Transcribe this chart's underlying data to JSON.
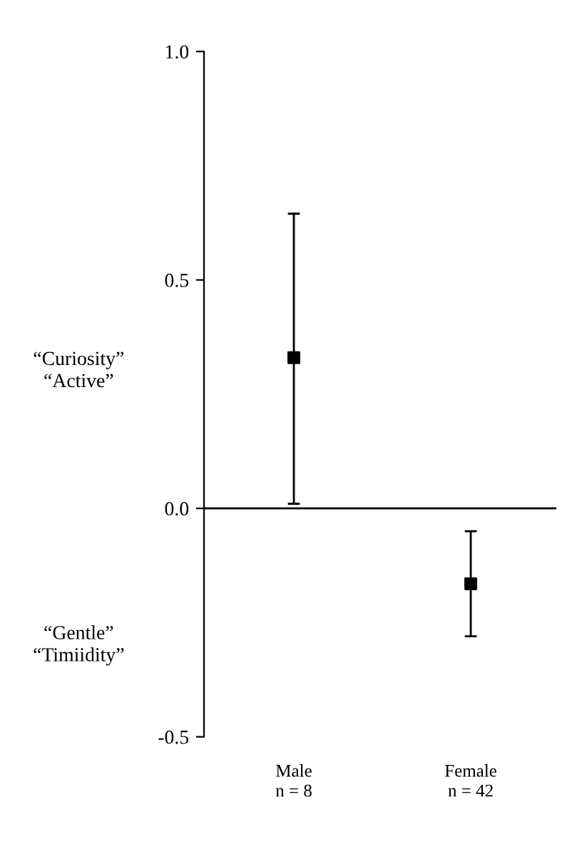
{
  "chart_data": {
    "type": "scatter",
    "categories": [
      "Male\nn = 8",
      "Female\nn = 42"
    ],
    "series": [
      {
        "color": "#000000",
        "values": [
          0.33,
          -0.165
        ],
        "errors": [
          [
            0.01,
            0.645
          ],
          [
            -0.28,
            -0.05
          ]
        ]
      }
    ],
    "marker": "square",
    "ylim": [
      -0.5,
      1.0
    ],
    "yticks": [
      {
        "value": -0.5,
        "label": "-0.5"
      },
      {
        "value": 0.0,
        "label": "0.0"
      },
      {
        "value": 0.5,
        "label": "0.5"
      },
      {
        "value": 1.0,
        "label": "1.0"
      }
    ],
    "ref_lines": [
      {
        "axis": "y",
        "value": 0.0,
        "color": "#000000"
      }
    ],
    "annotations": [
      "“Curiosity”\n“Active”",
      "“Gentle”\n“Timiidity”"
    ],
    "grid": false,
    "legend": false
  }
}
